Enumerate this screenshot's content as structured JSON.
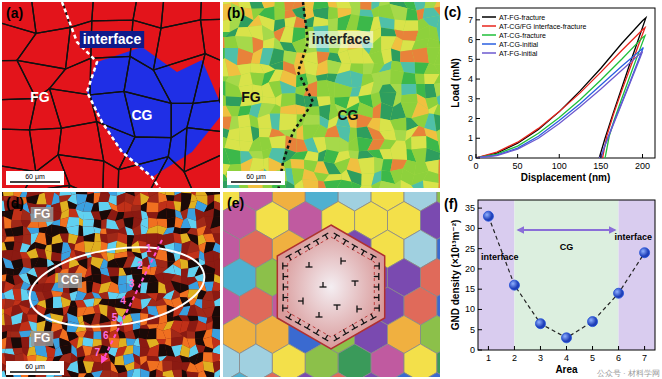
{
  "figure": {
    "panel_a": {
      "label": "(a)",
      "interface": "interface",
      "fine_grain": "FG",
      "coarse_grain": "CG",
      "scale_bar": "60 μm"
    },
    "panel_b": {
      "label": "(b)",
      "interface": "interface",
      "fine_grain": "FG",
      "coarse_grain": "CG",
      "scale_bar": "60 μm"
    },
    "panel_d": {
      "label": "(d)",
      "fine_grain_top": "FG",
      "coarse_grain": "CG",
      "fine_grain_bottom": "FG",
      "path_points": [
        "1",
        "2",
        "3",
        "4",
        "5",
        "6",
        "7"
      ],
      "scale_bar": "60 μm"
    },
    "panel_e": {
      "label": "(e)"
    },
    "watermark": "公众号 · 材料学网"
  },
  "chart_data": [
    {
      "type": "line",
      "title": "(c)",
      "x_label": "Displacement (nm)",
      "y_label": "Load (mN)",
      "xlim": [
        0,
        215
      ],
      "ylim": [
        0,
        7.6
      ],
      "xticks": [
        0,
        50,
        100,
        150,
        200
      ],
      "yticks": [
        0,
        1,
        2,
        3,
        4,
        5,
        6,
        7
      ],
      "legend": "upper left",
      "series": [
        {
          "name": "AT-FG-fracture",
          "color": "#000000",
          "x": [
            0,
            25,
            50,
            75,
            100,
            125,
            150,
            175,
            200,
            204,
            195,
            185,
            175,
            165,
            155,
            148
          ],
          "values": [
            0,
            0.25,
            0.75,
            1.45,
            2.35,
            3.4,
            4.55,
            5.8,
            6.95,
            7.1,
            6.0,
            4.8,
            3.55,
            2.3,
            1.0,
            0
          ]
        },
        {
          "name": "AT-CG/FG interface-fracture",
          "color": "#e8251c",
          "x": [
            0,
            25,
            50,
            75,
            100,
            125,
            150,
            175,
            200,
            203,
            195,
            185,
            175,
            165,
            157,
            152
          ],
          "values": [
            0,
            0.3,
            0.8,
            1.5,
            2.35,
            3.3,
            4.35,
            5.45,
            6.5,
            6.6,
            5.7,
            4.55,
            3.4,
            2.2,
            1.1,
            0
          ]
        },
        {
          "name": "AT-CG-fracture",
          "color": "#1fbf3a",
          "x": [
            0,
            25,
            50,
            75,
            100,
            125,
            150,
            175,
            200,
            203,
            195,
            185,
            175,
            165,
            160,
            155
          ],
          "values": [
            0,
            0.2,
            0.6,
            1.25,
            2.05,
            2.95,
            3.95,
            5.0,
            6.1,
            6.2,
            5.3,
            4.15,
            3.0,
            1.8,
            1.1,
            0
          ]
        },
        {
          "name": "AT-CG-initial",
          "color": "#2a5fe0",
          "x": [
            0,
            25,
            50,
            75,
            100,
            125,
            150,
            175,
            200,
            201,
            195,
            185,
            175,
            165,
            155,
            150
          ],
          "values": [
            0,
            0.15,
            0.5,
            1.1,
            1.9,
            2.75,
            3.7,
            4.65,
            5.55,
            5.6,
            4.95,
            3.85,
            2.8,
            1.75,
            0.65,
            0
          ]
        },
        {
          "name": "AT-FG-initial",
          "color": "#6d5acf",
          "x": [
            0,
            25,
            50,
            75,
            100,
            125,
            150,
            175,
            200,
            195,
            185,
            175,
            165,
            155,
            150,
            148
          ],
          "values": [
            0,
            0.12,
            0.45,
            1.0,
            1.75,
            2.6,
            3.5,
            4.45,
            5.4,
            4.85,
            3.8,
            2.75,
            1.7,
            0.65,
            0.1,
            0
          ]
        }
      ]
    },
    {
      "type": "line",
      "title": "(f)",
      "x_label": "Area",
      "y_label": "GND density (×10¹³m⁻²)",
      "x": [
        1,
        2,
        3,
        4,
        5,
        6,
        7
      ],
      "values": [
        33,
        16,
        6.5,
        3,
        7,
        14,
        24
      ],
      "xlim": [
        0.6,
        7.4
      ],
      "ylim": [
        0,
        37
      ],
      "xticks": [
        1,
        2,
        3,
        4,
        5,
        6,
        7
      ],
      "yticks": [
        0,
        5,
        10,
        15,
        20,
        25,
        30,
        35
      ],
      "color": "#1f4fd8",
      "marker": "circle",
      "line_style": "dashed",
      "annotations": [
        "interface",
        "CG",
        "interface"
      ]
    }
  ]
}
